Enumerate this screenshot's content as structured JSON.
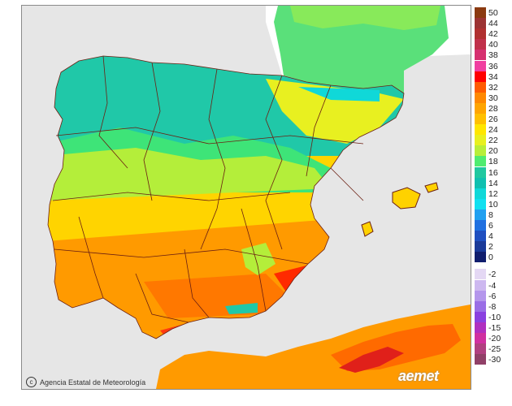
{
  "map": {
    "attribution": "Agencia Estatal de Meteorología",
    "logo": "aemet",
    "copyright_icon": "copyright-icon",
    "colors": {
      "sea": "#e6e6e6",
      "land_outside": "#ffffff",
      "border": "#6b1f12"
    }
  },
  "legend": {
    "warm": [
      {
        "label": "50",
        "color": "#8b3a10"
      },
      {
        "label": "44",
        "color": "#9c3333"
      },
      {
        "label": "42",
        "color": "#b03030"
      },
      {
        "label": "40",
        "color": "#c0304a"
      },
      {
        "label": "38",
        "color": "#d63070"
      },
      {
        "label": "36",
        "color": "#f03fa0"
      },
      {
        "label": "34",
        "color": "#ff0000"
      },
      {
        "label": "32",
        "color": "#ff5a00"
      },
      {
        "label": "30",
        "color": "#ff8800"
      },
      {
        "label": "28",
        "color": "#ffa500"
      },
      {
        "label": "26",
        "color": "#ffc000"
      },
      {
        "label": "24",
        "color": "#ffe600"
      },
      {
        "label": "22",
        "color": "#e8f020"
      },
      {
        "label": "20",
        "color": "#b8ee3a"
      },
      {
        "label": "18",
        "color": "#50ec70"
      },
      {
        "label": "16",
        "color": "#20c8a0"
      },
      {
        "label": "14",
        "color": "#10c0b0"
      },
      {
        "label": "12",
        "color": "#10d8d8"
      },
      {
        "label": "10",
        "color": "#10e0f0"
      },
      {
        "label": "8",
        "color": "#20a0f0"
      },
      {
        "label": "6",
        "color": "#2070e0"
      },
      {
        "label": "4",
        "color": "#1f4fc0"
      },
      {
        "label": "2",
        "color": "#1a3a99"
      },
      {
        "label": "0",
        "color": "#101e6e"
      }
    ],
    "cold": [
      {
        "label": "-2",
        "color": "#e4d8f4"
      },
      {
        "label": "-4",
        "color": "#cdb8f0"
      },
      {
        "label": "-6",
        "color": "#b496ec"
      },
      {
        "label": "-8",
        "color": "#9a6ee6"
      },
      {
        "label": "-10",
        "color": "#8a40e0"
      },
      {
        "label": "-15",
        "color": "#b030c0"
      },
      {
        "label": "-20",
        "color": "#d030a0"
      },
      {
        "label": "-25",
        "color": "#b04080"
      },
      {
        "label": "-30",
        "color": "#904068"
      }
    ]
  }
}
